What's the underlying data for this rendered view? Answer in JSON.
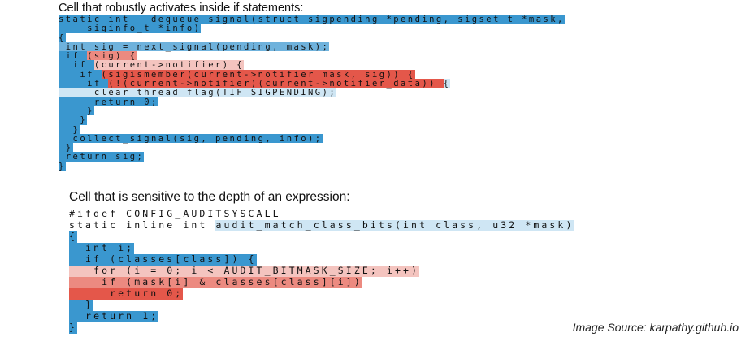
{
  "section1": {
    "title": "Cell that robustly activates inside if statements:",
    "lines": [
      [
        [
          "static int __dequeue_signal(struct sigpending *pending, sigset_t *mask,",
          "b"
        ]
      ],
      [
        [
          "    siginfo_t *info)",
          "b"
        ]
      ],
      [
        [
          "{",
          "b"
        ]
      ],
      [
        [
          " int sig = next_signal(pending, mask);",
          "bm"
        ]
      ],
      [
        [
          " if ",
          "b"
        ],
        [
          "(sig) {",
          "rm"
        ]
      ],
      [
        [
          "  if ",
          "b"
        ],
        [
          "(current->notifier) {",
          "rl"
        ]
      ],
      [
        [
          "   if ",
          "b"
        ],
        [
          "(sigismember(current->notifier_mask, sig)) {",
          "r"
        ]
      ],
      [
        [
          "    if ",
          "b"
        ],
        [
          "(!(current->notifier)(current->notifier_data)) ",
          "r"
        ],
        [
          "{",
          "bl"
        ]
      ],
      [
        [
          "     clear_thread_flag(TIF_SIGPENDING);",
          "bl"
        ]
      ],
      [
        [
          "     return 0;",
          "b"
        ]
      ],
      [
        [
          "    }",
          "b"
        ]
      ],
      [
        [
          "   }",
          "b"
        ]
      ],
      [
        [
          "  }",
          "b"
        ]
      ],
      [
        [
          "  collect_signal(sig, pending, info);",
          "b"
        ]
      ],
      [
        [
          " }",
          "b"
        ]
      ],
      [
        [
          " return sig;",
          "b"
        ]
      ],
      [
        [
          "}",
          "b"
        ]
      ]
    ]
  },
  "section2": {
    "title": "Cell that is sensitive to the depth of an expression:",
    "lines": [
      [
        [
          "#ifdef CONFIG_AUDITSYSCALL",
          "w"
        ]
      ],
      [
        [
          "static inline int ",
          "w"
        ],
        [
          "audit_match_class_bits(int class, u32 *mask)",
          "bl"
        ]
      ],
      [
        [
          "{",
          "b"
        ]
      ],
      [
        [
          "  int i;",
          "b"
        ]
      ],
      [
        [
          "  if (classes[class]) {",
          "b"
        ]
      ],
      [
        [
          "   for (i = 0; i < AUDIT_BITMASK_SIZE; i++)",
          "rl"
        ]
      ],
      [
        [
          "    if (mask[i] & classes[class][i])",
          "rm"
        ]
      ],
      [
        [
          "     return 0;",
          "r"
        ]
      ],
      [
        [
          "  }",
          "b"
        ]
      ],
      [
        [
          "  return 1;",
          "b"
        ]
      ],
      [
        [
          "}",
          "b"
        ]
      ]
    ]
  },
  "caption": "Image Source: karpathy.github.io",
  "colors": {
    "strong_blue": "#3a97cf",
    "light_blue": "#cfe6f4",
    "strong_red": "#e4574a",
    "light_red": "#f4c4bf"
  }
}
